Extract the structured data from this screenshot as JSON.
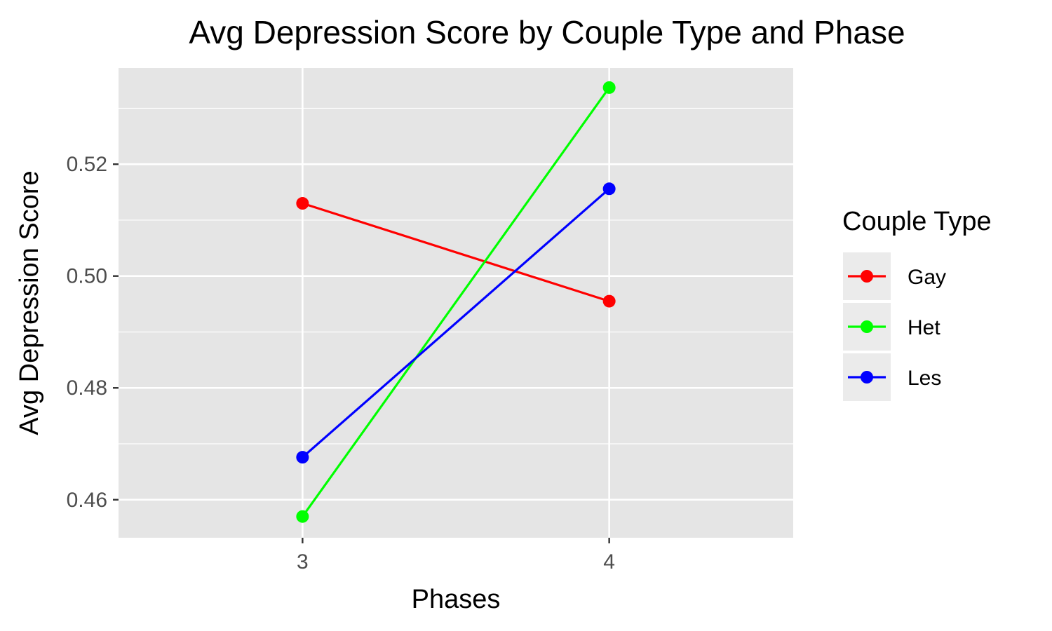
{
  "chart_data": {
    "type": "line",
    "title": "Avg Depression Score by Couple Type and Phase",
    "xlabel": "Phases",
    "ylabel": "Avg Depression Score",
    "x": [
      3,
      4
    ],
    "x_tick_labels": [
      "3",
      "4"
    ],
    "xlim": [
      2.4,
      4.6
    ],
    "ylim": [
      0.4532,
      0.5372
    ],
    "y_ticks": [
      0.46,
      0.48,
      0.5,
      0.52
    ],
    "y_tick_labels": [
      "0.46",
      "0.48",
      "0.50",
      "0.52"
    ],
    "y_minor_ticks": [
      0.47,
      0.49,
      0.51,
      0.53
    ],
    "grid": true,
    "legend": {
      "title": "Couple Type",
      "position": "right"
    },
    "series": [
      {
        "name": "Gay",
        "color": "#ff0000",
        "values": [
          0.513,
          0.4955
        ]
      },
      {
        "name": "Het",
        "color": "#00ff00",
        "values": [
          0.457,
          0.5337
        ]
      },
      {
        "name": "Les",
        "color": "#0000ff",
        "values": [
          0.4676,
          0.5156
        ]
      }
    ]
  }
}
